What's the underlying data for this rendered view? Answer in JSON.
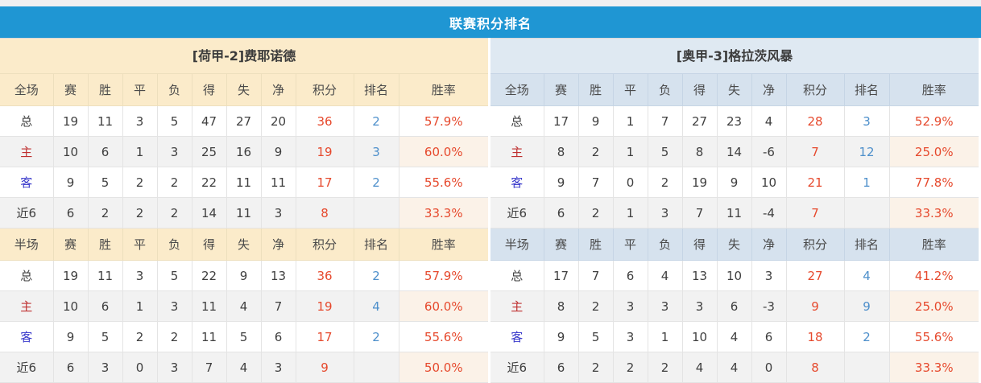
{
  "banner": {
    "title": "联赛积分排名"
  },
  "columns": [
    "赛",
    "胜",
    "平",
    "负",
    "得",
    "失",
    "净",
    "积分",
    "排名",
    "胜率"
  ],
  "colors": {
    "banner_bg": "#1F96D3",
    "left_header_bg": "#FBEBCA",
    "right_header_bg": "#D6E2EE",
    "points_red": "#E6492D",
    "rank_blue": "#4D8FCB",
    "home_label_red": "#BF3030",
    "away_label_blue": "#3A3ACB",
    "even_row_bg": "#F2F2F2"
  },
  "tables": [
    {
      "team_title": "[荷甲-2]费耶诺德",
      "sections": [
        {
          "label": "全场",
          "rows": [
            {
              "name": "总",
              "values": [
                "19",
                "11",
                "3",
                "5",
                "47",
                "27",
                "20",
                "36",
                "2",
                "57.9%"
              ]
            },
            {
              "name": "主",
              "values": [
                "10",
                "6",
                "1",
                "3",
                "25",
                "16",
                "9",
                "19",
                "3",
                "60.0%"
              ]
            },
            {
              "name": "客",
              "values": [
                "9",
                "5",
                "2",
                "2",
                "22",
                "11",
                "11",
                "17",
                "2",
                "55.6%"
              ]
            },
            {
              "name": "近6",
              "values": [
                "6",
                "2",
                "2",
                "2",
                "14",
                "11",
                "3",
                "8",
                "",
                "33.3%"
              ]
            }
          ]
        },
        {
          "label": "半场",
          "rows": [
            {
              "name": "总",
              "values": [
                "19",
                "11",
                "3",
                "5",
                "22",
                "9",
                "13",
                "36",
                "2",
                "57.9%"
              ]
            },
            {
              "name": "主",
              "values": [
                "10",
                "6",
                "1",
                "3",
                "11",
                "4",
                "7",
                "19",
                "4",
                "60.0%"
              ]
            },
            {
              "name": "客",
              "values": [
                "9",
                "5",
                "2",
                "2",
                "11",
                "5",
                "6",
                "17",
                "2",
                "55.6%"
              ]
            },
            {
              "name": "近6",
              "values": [
                "6",
                "3",
                "0",
                "3",
                "7",
                "4",
                "3",
                "9",
                "",
                "50.0%"
              ]
            }
          ]
        }
      ]
    },
    {
      "team_title": "[奥甲-3]格拉茨风暴",
      "sections": [
        {
          "label": "全场",
          "rows": [
            {
              "name": "总",
              "values": [
                "17",
                "9",
                "1",
                "7",
                "27",
                "23",
                "4",
                "28",
                "3",
                "52.9%"
              ]
            },
            {
              "name": "主",
              "values": [
                "8",
                "2",
                "1",
                "5",
                "8",
                "14",
                "-6",
                "7",
                "12",
                "25.0%"
              ]
            },
            {
              "name": "客",
              "values": [
                "9",
                "7",
                "0",
                "2",
                "19",
                "9",
                "10",
                "21",
                "1",
                "77.8%"
              ]
            },
            {
              "name": "近6",
              "values": [
                "6",
                "2",
                "1",
                "3",
                "7",
                "11",
                "-4",
                "7",
                "",
                "33.3%"
              ]
            }
          ]
        },
        {
          "label": "半场",
          "rows": [
            {
              "name": "总",
              "values": [
                "17",
                "7",
                "6",
                "4",
                "13",
                "10",
                "3",
                "27",
                "4",
                "41.2%"
              ]
            },
            {
              "name": "主",
              "values": [
                "8",
                "2",
                "3",
                "3",
                "3",
                "6",
                "-3",
                "9",
                "9",
                "25.0%"
              ]
            },
            {
              "name": "客",
              "values": [
                "9",
                "5",
                "3",
                "1",
                "10",
                "4",
                "6",
                "18",
                "2",
                "55.6%"
              ]
            },
            {
              "name": "近6",
              "values": [
                "6",
                "2",
                "2",
                "2",
                "4",
                "4",
                "0",
                "8",
                "",
                "33.3%"
              ]
            }
          ]
        }
      ]
    }
  ]
}
